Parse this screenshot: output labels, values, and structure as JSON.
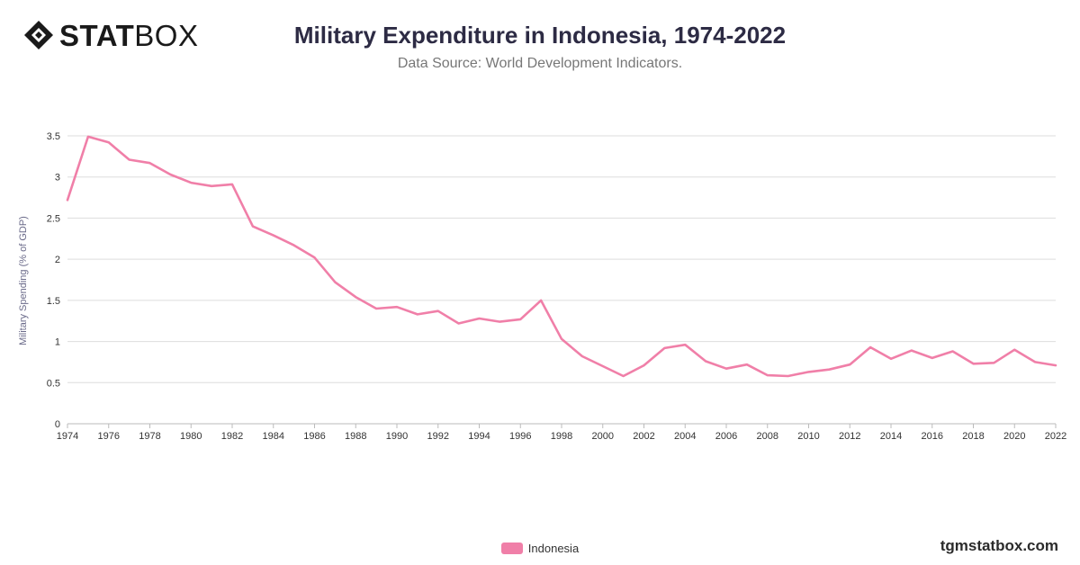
{
  "header": {
    "logo_bold": "STAT",
    "logo_light": "BOX",
    "title": "Military Expenditure in Indonesia, 1974-2022",
    "subtitle": "Data Source: World Development Indicators."
  },
  "footer": {
    "watermark": "tgmstatbox.com"
  },
  "colors": {
    "line": "#f07fa8",
    "grid": "#dddddd",
    "axis_text": "#333333",
    "ylabel": "#6b6b8a"
  },
  "chart_data": {
    "type": "line",
    "title": "Military Expenditure in Indonesia, 1974-2022",
    "subtitle": "Data Source: World Development Indicators.",
    "xlabel": "",
    "ylabel": "Military Spending (% of GDP)",
    "xlim": [
      1974,
      2022
    ],
    "ylim": [
      0,
      3.5
    ],
    "x_ticks": [
      1974,
      1976,
      1978,
      1980,
      1982,
      1984,
      1986,
      1988,
      1990,
      1992,
      1994,
      1996,
      1998,
      2000,
      2002,
      2004,
      2006,
      2008,
      2010,
      2012,
      2014,
      2016,
      2018,
      2020,
      2022
    ],
    "y_ticks": [
      0,
      0.5,
      1,
      1.5,
      2,
      2.5,
      3,
      3.5
    ],
    "y_tick_labels": [
      "0",
      "0.5",
      "1",
      "1.5",
      "2",
      "2.5",
      "3",
      "3.5"
    ],
    "grid": true,
    "legend_position": "bottom-center",
    "series": [
      {
        "name": "Indonesia",
        "color": "#f07fa8",
        "x": [
          1974,
          1975,
          1976,
          1977,
          1978,
          1979,
          1980,
          1981,
          1982,
          1983,
          1984,
          1985,
          1986,
          1987,
          1988,
          1989,
          1990,
          1991,
          1992,
          1993,
          1994,
          1995,
          1996,
          1997,
          1998,
          1999,
          2000,
          2001,
          2002,
          2003,
          2004,
          2005,
          2006,
          2007,
          2008,
          2009,
          2010,
          2011,
          2012,
          2013,
          2014,
          2015,
          2016,
          2017,
          2018,
          2019,
          2020,
          2021,
          2022
        ],
        "values": [
          2.72,
          3.49,
          3.42,
          3.21,
          3.17,
          3.03,
          2.93,
          2.89,
          2.91,
          2.4,
          2.29,
          2.17,
          2.02,
          1.72,
          1.54,
          1.4,
          1.42,
          1.33,
          1.37,
          1.22,
          1.28,
          1.24,
          1.27,
          1.5,
          1.03,
          0.82,
          0.7,
          0.58,
          0.71,
          0.92,
          0.96,
          0.76,
          0.67,
          0.72,
          0.59,
          0.58,
          0.63,
          0.66,
          0.72,
          0.93,
          0.79,
          0.89,
          0.8,
          0.88,
          0.73,
          0.74,
          0.9,
          0.75,
          0.71
        ]
      }
    ]
  }
}
